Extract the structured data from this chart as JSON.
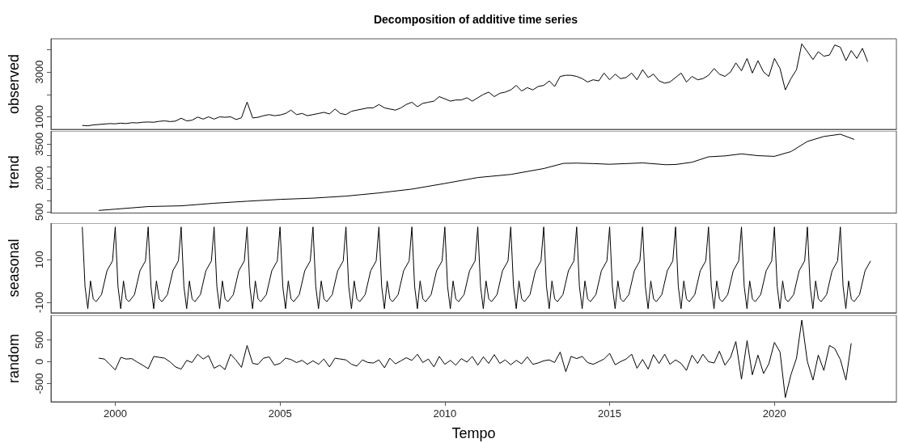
{
  "chart_data": [
    {
      "type": "line",
      "title": "Decomposition of additive time series",
      "ylabel": "observed",
      "color": "#000000",
      "tick_labels": "y",
      "xlim": [
        1998.05,
        2023.7
      ],
      "ylim": [
        443,
        4474
      ],
      "yticks": [
        1000,
        {
          "value": 2000,
          "label": null
        },
        3000,
        {
          "value": 4000,
          "label": null
        }
      ],
      "x": [
        1999,
        1999.17,
        1999.33,
        1999.5,
        1999.67,
        1999.83,
        2000,
        2000.17,
        2000.33,
        2000.5,
        2000.67,
        2000.83,
        2001,
        2001.17,
        2001.33,
        2001.5,
        2001.67,
        2001.83,
        2002,
        2002.17,
        2002.33,
        2002.5,
        2002.67,
        2002.83,
        2003,
        2003.17,
        2003.33,
        2003.5,
        2003.67,
        2003.83,
        2004,
        2004.17,
        2004.33,
        2004.5,
        2004.67,
        2004.83,
        2005,
        2005.17,
        2005.33,
        2005.5,
        2005.67,
        2005.83,
        2006,
        2006.17,
        2006.33,
        2006.5,
        2006.67,
        2006.83,
        2007,
        2007.17,
        2007.33,
        2007.5,
        2007.67,
        2007.83,
        2008,
        2008.17,
        2008.33,
        2008.5,
        2008.67,
        2008.83,
        2009,
        2009.17,
        2009.33,
        2009.5,
        2009.67,
        2009.83,
        2010,
        2010.17,
        2010.33,
        2010.5,
        2010.67,
        2010.83,
        2011,
        2011.17,
        2011.33,
        2011.5,
        2011.67,
        2011.83,
        2012,
        2012.17,
        2012.33,
        2012.5,
        2012.67,
        2012.83,
        2013,
        2013.17,
        2013.33,
        2013.5,
        2013.67,
        2013.83,
        2014,
        2014.17,
        2014.33,
        2014.5,
        2014.67,
        2014.83,
        2015,
        2015.17,
        2015.33,
        2015.5,
        2015.67,
        2015.83,
        2016,
        2016.17,
        2016.33,
        2016.5,
        2016.67,
        2016.83,
        2017,
        2017.17,
        2017.33,
        2017.5,
        2017.67,
        2017.83,
        2018,
        2018.17,
        2018.33,
        2018.5,
        2018.67,
        2018.83,
        2019,
        2019.17,
        2019.33,
        2019.5,
        2019.67,
        2019.83,
        2020,
        2020.17,
        2020.33,
        2020.5,
        2020.67,
        2020.83,
        2021,
        2021.17,
        2021.33,
        2021.5,
        2021.67,
        2021.83,
        2022,
        2022.17,
        2022.33,
        2022.5,
        2022.67,
        2022.83
      ],
      "values": [
        620,
        600,
        640,
        660,
        680,
        700,
        690,
        720,
        700,
        740,
        730,
        760,
        770,
        760,
        800,
        820,
        790,
        810,
        940,
        820,
        850,
        990,
        900,
        1000,
        900,
        1000,
        980,
        1000,
        880,
        960,
        1660,
        950,
        980,
        1050,
        1100,
        1050,
        1080,
        1150,
        1300,
        1100,
        1150,
        1050,
        1100,
        1150,
        1200,
        1130,
        1350,
        1150,
        1100,
        1250,
        1300,
        1350,
        1400,
        1400,
        1550,
        1400,
        1350,
        1300,
        1400,
        1550,
        1650,
        1450,
        1600,
        1650,
        1700,
        1900,
        1800,
        1700,
        1750,
        1750,
        1850,
        1700,
        1850,
        2000,
        2100,
        1900,
        2050,
        2100,
        2200,
        2400,
        2150,
        2300,
        2200,
        2350,
        2400,
        2600,
        2350,
        2800,
        2850,
        2850,
        2800,
        2700,
        2550,
        2650,
        2600,
        2950,
        2650,
        2900,
        2700,
        2750,
        2950,
        2650,
        3100,
        2750,
        2900,
        2600,
        2500,
        2550,
        2750,
        2950,
        2550,
        2800,
        2650,
        2700,
        2850,
        3150,
        2900,
        2800,
        3000,
        3400,
        3050,
        3600,
        2950,
        3500,
        3000,
        2800,
        3600,
        3150,
        2200,
        2700,
        3100,
        4250,
        3900,
        3550,
        3900,
        3700,
        3750,
        4200,
        4100,
        3500,
        3950,
        3600,
        4050,
        3450
      ]
    },
    {
      "type": "line",
      "ylabel": "trend",
      "color": "#000000",
      "tick_labels": "y",
      "xlim": [
        1998.05,
        2023.7
      ],
      "ylim": [
        449,
        4084
      ],
      "yticks": [
        500,
        {
          "value": 1000,
          "label": null
        },
        {
          "value": 1500,
          "label": null
        },
        2000,
        {
          "value": 2500,
          "label": null
        },
        {
          "value": 3000,
          "label": null
        },
        3500
      ],
      "x": [
        1999.5,
        2000,
        2001,
        2002,
        2003,
        2004,
        2005,
        2006,
        2007,
        2008,
        2009,
        2010,
        2011,
        2012,
        2013,
        2013.6,
        2014,
        2014.5,
        2015,
        2015.5,
        2016,
        2016.7,
        2017,
        2017.5,
        2018,
        2018.5,
        2019,
        2019.5,
        2020,
        2020.5,
        2021,
        2021.5,
        2022,
        2022.42
      ],
      "values": [
        565,
        622,
        737,
        770,
        884,
        973,
        1055,
        1110,
        1200,
        1340,
        1510,
        1760,
        2022,
        2160,
        2420,
        2650,
        2660,
        2640,
        2610,
        2640,
        2670,
        2590,
        2600,
        2700,
        2940,
        2980,
        3070,
        2990,
        2960,
        3170,
        3620,
        3840,
        3940,
        3710
      ]
    },
    {
      "type": "line",
      "ylabel": "seasonal",
      "color": "#000000",
      "tick_labels": "y",
      "xlim": [
        1998.05,
        2023.7
      ],
      "ylim": [
        -149,
        271
      ],
      "yticks": [
        -100,
        100
      ],
      "x": [
        1999,
        1999.083,
        1999.167,
        1999.25,
        1999.333,
        1999.417,
        1999.583,
        1999.75,
        1999.917,
        2000,
        2000.083,
        2000.167,
        2000.25,
        2000.333,
        2000.417,
        2000.583,
        2000.75,
        2000.917,
        2001,
        2001.083,
        2001.167,
        2001.25,
        2001.333,
        2001.417,
        2001.583,
        2001.75,
        2001.917,
        2002,
        2002.083,
        2002.167,
        2002.25,
        2002.333,
        2002.417,
        2002.583,
        2002.75,
        2002.917,
        2003,
        2003.083,
        2003.167,
        2003.25,
        2003.333,
        2003.417,
        2003.583,
        2003.75,
        2003.917,
        2004,
        2004.083,
        2004.167,
        2004.25,
        2004.333,
        2004.417,
        2004.583,
        2004.75,
        2004.917,
        2005,
        2005.083,
        2005.167,
        2005.25,
        2005.333,
        2005.417,
        2005.583,
        2005.75,
        2005.917,
        2006,
        2006.083,
        2006.167,
        2006.25,
        2006.333,
        2006.417,
        2006.583,
        2006.75,
        2006.917,
        2007,
        2007.083,
        2007.167,
        2007.25,
        2007.333,
        2007.417,
        2007.583,
        2007.75,
        2007.917,
        2008,
        2008.083,
        2008.167,
        2008.25,
        2008.333,
        2008.417,
        2008.583,
        2008.75,
        2008.917,
        2009,
        2009.083,
        2009.167,
        2009.25,
        2009.333,
        2009.417,
        2009.583,
        2009.75,
        2009.917,
        2010,
        2010.083,
        2010.167,
        2010.25,
        2010.333,
        2010.417,
        2010.583,
        2010.75,
        2010.917,
        2011,
        2011.083,
        2011.167,
        2011.25,
        2011.333,
        2011.417,
        2011.583,
        2011.75,
        2011.917,
        2012,
        2012.083,
        2012.167,
        2012.25,
        2012.333,
        2012.417,
        2012.583,
        2012.75,
        2012.917,
        2013,
        2013.083,
        2013.167,
        2013.25,
        2013.333,
        2013.417,
        2013.583,
        2013.75,
        2013.917,
        2014,
        2014.083,
        2014.167,
        2014.25,
        2014.333,
        2014.417,
        2014.583,
        2014.75,
        2014.917,
        2015,
        2015.083,
        2015.167,
        2015.25,
        2015.333,
        2015.417,
        2015.583,
        2015.75,
        2015.917,
        2016,
        2016.083,
        2016.167,
        2016.25,
        2016.333,
        2016.417,
        2016.583,
        2016.75,
        2016.917,
        2017,
        2017.083,
        2017.167,
        2017.25,
        2017.333,
        2017.417,
        2017.583,
        2017.75,
        2017.917,
        2018,
        2018.083,
        2018.167,
        2018.25,
        2018.333,
        2018.417,
        2018.583,
        2018.75,
        2018.917,
        2019,
        2019.083,
        2019.167,
        2019.25,
        2019.333,
        2019.417,
        2019.583,
        2019.75,
        2019.917,
        2020,
        2020.083,
        2020.167,
        2020.25,
        2020.333,
        2020.417,
        2020.583,
        2020.75,
        2020.917,
        2021,
        2021.083,
        2021.167,
        2021.25,
        2021.333,
        2021.417,
        2021.583,
        2021.75,
        2021.917,
        2022,
        2022.083,
        2022.167,
        2022.25,
        2022.333,
        2022.417,
        2022.583,
        2022.75,
        2022.917
      ],
      "values": [
        253,
        -25,
        -130,
        0,
        -84,
        -97,
        -64,
        48,
        94,
        253,
        -25,
        -130,
        0,
        -84,
        -97,
        -64,
        48,
        94,
        253,
        -25,
        -130,
        0,
        -84,
        -97,
        -64,
        48,
        94,
        253,
        -25,
        -130,
        0,
        -84,
        -97,
        -64,
        48,
        94,
        253,
        -25,
        -130,
        0,
        -84,
        -97,
        -64,
        48,
        94,
        253,
        -25,
        -130,
        0,
        -84,
        -97,
        -64,
        48,
        94,
        253,
        -25,
        -130,
        0,
        -84,
        -97,
        -64,
        48,
        94,
        253,
        -25,
        -130,
        0,
        -84,
        -97,
        -64,
        48,
        94,
        253,
        -25,
        -130,
        0,
        -84,
        -97,
        -64,
        48,
        94,
        253,
        -25,
        -130,
        0,
        -84,
        -97,
        -64,
        48,
        94,
        253,
        -25,
        -130,
        0,
        -84,
        -97,
        -64,
        48,
        94,
        253,
        -25,
        -130,
        0,
        -84,
        -97,
        -64,
        48,
        94,
        253,
        -25,
        -130,
        0,
        -84,
        -97,
        -64,
        48,
        94,
        253,
        -25,
        -130,
        0,
        -84,
        -97,
        -64,
        48,
        94,
        253,
        -25,
        -130,
        0,
        -84,
        -97,
        -64,
        48,
        94,
        253,
        -25,
        -130,
        0,
        -84,
        -97,
        -64,
        48,
        94,
        253,
        -25,
        -130,
        0,
        -84,
        -97,
        -64,
        48,
        94,
        253,
        -25,
        -130,
        0,
        -84,
        -97,
        -64,
        48,
        94,
        253,
        -25,
        -130,
        0,
        -84,
        -97,
        -64,
        48,
        94,
        253,
        -25,
        -130,
        0,
        -84,
        -97,
        -64,
        48,
        94,
        253,
        -25,
        -130,
        0,
        -84,
        -97,
        -64,
        48,
        94,
        253,
        -25,
        -130,
        0,
        -84,
        -97,
        -64,
        48,
        94,
        253,
        -25,
        -130,
        0,
        -84,
        -97,
        -64,
        48,
        94,
        253,
        -25,
        -130,
        0,
        -84,
        -97,
        -64,
        48,
        94
      ]
    },
    {
      "type": "line",
      "ylabel": "random",
      "xlabel": "Tempo",
      "color": "#000000",
      "xlim": [
        1998.05,
        2023.7
      ],
      "xticks": [
        2000,
        2005,
        2010,
        2015,
        2020
      ],
      "ylim": [
        -916,
        1060
      ],
      "yticks": [
        -500,
        0,
        500
      ],
      "x": [
        1999.5,
        1999.67,
        1999.83,
        2000,
        2000.17,
        2000.33,
        2000.5,
        2000.67,
        2000.83,
        2001,
        2001.17,
        2001.33,
        2001.5,
        2001.67,
        2001.83,
        2002,
        2002.17,
        2002.33,
        2002.5,
        2002.67,
        2002.83,
        2003,
        2003.17,
        2003.33,
        2003.5,
        2003.67,
        2003.83,
        2004,
        2004.17,
        2004.33,
        2004.5,
        2004.67,
        2004.83,
        2005,
        2005.17,
        2005.33,
        2005.5,
        2005.67,
        2005.83,
        2006,
        2006.17,
        2006.33,
        2006.5,
        2006.67,
        2006.83,
        2007,
        2007.17,
        2007.33,
        2007.5,
        2007.67,
        2007.83,
        2008,
        2008.17,
        2008.33,
        2008.5,
        2008.67,
        2008.83,
        2009,
        2009.17,
        2009.33,
        2009.5,
        2009.67,
        2009.83,
        2010,
        2010.17,
        2010.33,
        2010.5,
        2010.67,
        2010.83,
        2011,
        2011.17,
        2011.33,
        2011.5,
        2011.67,
        2011.83,
        2012,
        2012.17,
        2012.33,
        2012.5,
        2012.67,
        2012.83,
        2013,
        2013.17,
        2013.33,
        2013.5,
        2013.67,
        2013.83,
        2014,
        2014.17,
        2014.33,
        2014.5,
        2014.67,
        2014.83,
        2015,
        2015.17,
        2015.33,
        2015.5,
        2015.67,
        2015.83,
        2016,
        2016.17,
        2016.33,
        2016.5,
        2016.67,
        2016.83,
        2017,
        2017.17,
        2017.33,
        2017.5,
        2017.67,
        2017.83,
        2018,
        2018.17,
        2018.33,
        2018.5,
        2018.67,
        2018.83,
        2019,
        2019.17,
        2019.33,
        2019.5,
        2019.67,
        2019.83,
        2020,
        2020.17,
        2020.33,
        2020.5,
        2020.67,
        2020.83,
        2021,
        2021.17,
        2021.33,
        2021.5,
        2021.67,
        2021.83,
        2022,
        2022.17,
        2022.33
      ],
      "values": [
        80,
        60,
        -60,
        -190,
        100,
        60,
        70,
        -10,
        -80,
        -160,
        120,
        100,
        80,
        -10,
        -120,
        -170,
        30,
        -20,
        170,
        60,
        140,
        -150,
        -80,
        -180,
        170,
        30,
        -130,
        370,
        -40,
        -60,
        80,
        110,
        -80,
        -40,
        80,
        50,
        -20,
        30,
        -60,
        20,
        -60,
        60,
        -120,
        80,
        60,
        40,
        -60,
        -100,
        40,
        -20,
        -30,
        40,
        -140,
        80,
        -50,
        20,
        90,
        30,
        170,
        -20,
        60,
        -120,
        120,
        -60,
        30,
        -80,
        70,
        -10,
        120,
        -80,
        110,
        -40,
        160,
        -40,
        40,
        -70,
        30,
        -50,
        110,
        -60,
        -30,
        20,
        40,
        -20,
        220,
        -230,
        120,
        70,
        120,
        -20,
        -60,
        0,
        60,
        190,
        -70,
        0,
        60,
        170,
        -150,
        50,
        -170,
        160,
        -40,
        170,
        -60,
        40,
        -40,
        -200,
        150,
        -40,
        170,
        0,
        -30,
        240,
        -80,
        100,
        460,
        -400,
        480,
        -300,
        150,
        -270,
        -50,
        440,
        220,
        -820,
        -300,
        80,
        950,
        0,
        -420,
        150,
        -200,
        370,
        300,
        50,
        -420,
        420
      ]
    }
  ]
}
